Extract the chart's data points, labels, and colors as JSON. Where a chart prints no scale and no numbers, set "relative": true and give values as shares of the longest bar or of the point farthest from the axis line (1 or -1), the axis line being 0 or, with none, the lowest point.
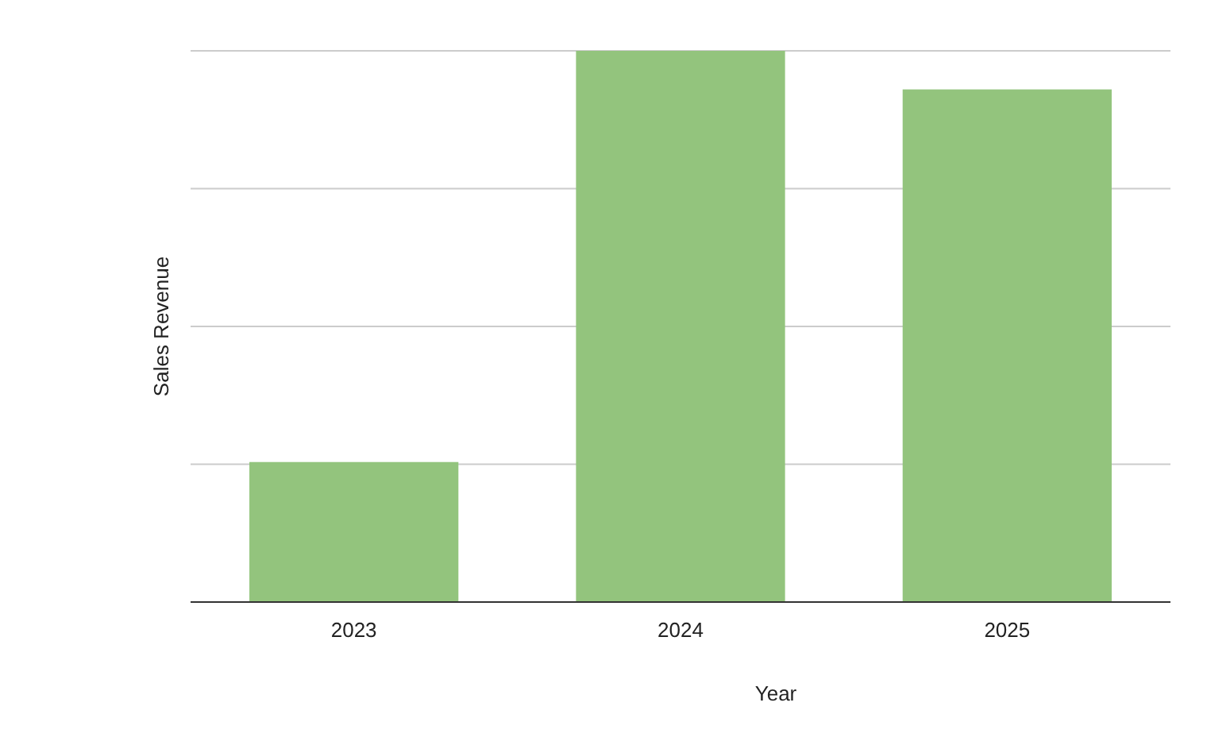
{
  "chart_data": {
    "type": "bar",
    "xlabel": "Year",
    "ylabel": "Sales Revenue",
    "categories": [
      "2023",
      "2024",
      "2025"
    ],
    "values": [
      0.254,
      1,
      0.93
    ],
    "color": "#93c47d",
    "relative": true,
    "grid": true
  }
}
